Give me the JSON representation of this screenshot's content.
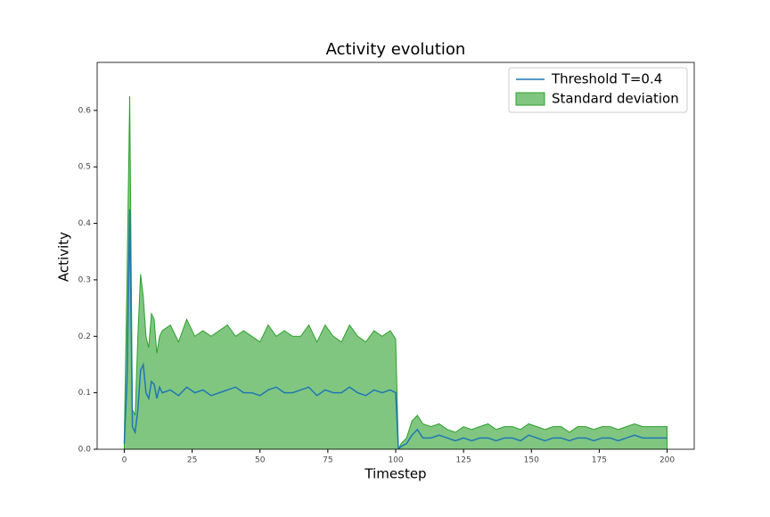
{
  "chart_data": {
    "type": "line-band",
    "title": "Activity evolution",
    "x_label": "Timestep",
    "y_label": "Activity",
    "x": [
      0,
      1,
      2,
      3,
      4,
      5,
      6,
      7,
      8,
      9,
      10,
      11,
      12,
      13,
      14,
      17,
      20,
      23,
      26,
      29,
      32,
      35,
      38,
      41,
      44,
      47,
      50,
      53,
      56,
      59,
      62,
      65,
      68,
      71,
      74,
      77,
      80,
      83,
      86,
      89,
      92,
      95,
      98,
      100,
      101,
      102,
      104,
      106,
      108,
      110,
      113,
      116,
      119,
      122,
      125,
      128,
      131,
      134,
      137,
      140,
      143,
      146,
      149,
      152,
      155,
      158,
      161,
      164,
      167,
      170,
      173,
      176,
      179,
      182,
      185,
      188,
      191,
      194,
      197,
      200
    ],
    "series": [
      {
        "name": "Threshold T=0.4",
        "color": "#1f77b4",
        "values": [
          0.01,
          0.12,
          0.425,
          0.04,
          0.03,
          0.07,
          0.14,
          0.15,
          0.1,
          0.09,
          0.12,
          0.115,
          0.09,
          0.11,
          0.1,
          0.105,
          0.095,
          0.11,
          0.1,
          0.105,
          0.095,
          0.1,
          0.105,
          0.11,
          0.1,
          0.1,
          0.095,
          0.105,
          0.11,
          0.1,
          0.1,
          0.105,
          0.11,
          0.095,
          0.105,
          0.1,
          0.1,
          0.11,
          0.1,
          0.095,
          0.105,
          0.1,
          0.105,
          0.1,
          0.0,
          0.005,
          0.01,
          0.025,
          0.035,
          0.02,
          0.02,
          0.025,
          0.02,
          0.015,
          0.02,
          0.015,
          0.02,
          0.02,
          0.015,
          0.02,
          0.02,
          0.015,
          0.025,
          0.02,
          0.015,
          0.02,
          0.02,
          0.015,
          0.02,
          0.02,
          0.015,
          0.02,
          0.02,
          0.015,
          0.02,
          0.025,
          0.02,
          0.02,
          0.02,
          0.02
        ]
      },
      {
        "name": "Standard deviation",
        "color": "#2ca02c",
        "upper": [
          0.02,
          0.3,
          0.625,
          0.07,
          0.06,
          0.2,
          0.31,
          0.27,
          0.2,
          0.18,
          0.24,
          0.23,
          0.17,
          0.2,
          0.21,
          0.22,
          0.19,
          0.23,
          0.2,
          0.21,
          0.2,
          0.21,
          0.22,
          0.2,
          0.21,
          0.2,
          0.19,
          0.22,
          0.2,
          0.21,
          0.2,
          0.2,
          0.22,
          0.19,
          0.22,
          0.2,
          0.19,
          0.22,
          0.2,
          0.19,
          0.21,
          0.2,
          0.21,
          0.195,
          0,
          0.01,
          0.02,
          0.05,
          0.06,
          0.045,
          0.04,
          0.045,
          0.035,
          0.03,
          0.04,
          0.035,
          0.04,
          0.045,
          0.035,
          0.04,
          0.04,
          0.035,
          0.045,
          0.04,
          0.035,
          0.04,
          0.04,
          0.03,
          0.04,
          0.04,
          0.035,
          0.04,
          0.04,
          0.035,
          0.04,
          0.045,
          0.04,
          0.04,
          0.04,
          0.04
        ],
        "lower": [
          0,
          0,
          0,
          0,
          0,
          0,
          0,
          0,
          0,
          0,
          0,
          0,
          0,
          0,
          0,
          0,
          0,
          0,
          0,
          0,
          0,
          0,
          0,
          0,
          0,
          0,
          0,
          0,
          0,
          0,
          0,
          0,
          0,
          0,
          0,
          0,
          0,
          0,
          0,
          0,
          0,
          0,
          0,
          0,
          0,
          0,
          0,
          0,
          0,
          0,
          0,
          0,
          0,
          0,
          0,
          0,
          0,
          0,
          0,
          0,
          0,
          0,
          0,
          0,
          0,
          0,
          0,
          0,
          0,
          0,
          0,
          0,
          0,
          0,
          0,
          0,
          0,
          0,
          0,
          0
        ]
      }
    ],
    "xlim": [
      -10,
      210
    ],
    "ylim": [
      0,
      0.685
    ],
    "xticks": [
      0,
      25,
      50,
      75,
      100,
      125,
      150,
      175,
      200
    ],
    "yticks": [
      {
        "value": 0,
        "label": "0.0"
      },
      0.1,
      0.2,
      0.3,
      0.4,
      0.5,
      0.6
    ],
    "legend": "upper right"
  }
}
